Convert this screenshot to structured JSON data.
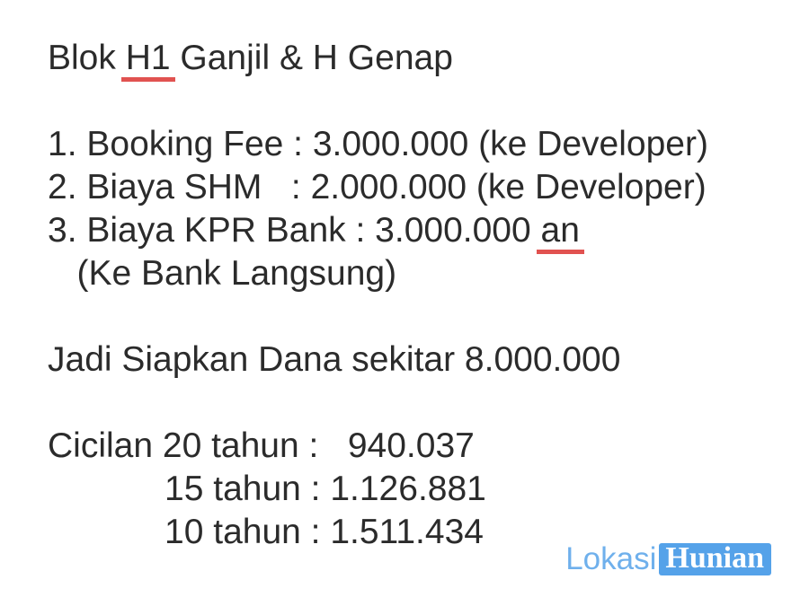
{
  "content": {
    "title": {
      "pre": "Blok ",
      "marked": "H1",
      "post": " Ganjil & H Genap"
    },
    "items": {
      "item1": "1. Booking Fee : 3.000.000 (ke Developer)",
      "item2": "2. Biaya SHM   : 2.000.000 (ke Developer)",
      "item3_pre": "3. Biaya KPR Bank : 3.000.000 ",
      "item3_marked": "an",
      "item3_note": "   (Ke Bank Langsung)"
    },
    "summary": "Jadi Siapkan Dana sekitar 8.000.000",
    "installments": {
      "line1": "Cicilan 20 tahun :   940.037",
      "line2": "            15 tahun : 1.126.881",
      "line3": "            10 tahun : 1.511.434"
    }
  },
  "watermark": {
    "brand_left": "Lokasi",
    "brand_right": "Hunian"
  },
  "colors": {
    "text": "#2b2b2b",
    "spellcheck_underline": "#e15250",
    "watermark_blue": "#55a2e9",
    "watermark_light_blue": "#6fb0ec",
    "background": "#ffffff"
  }
}
